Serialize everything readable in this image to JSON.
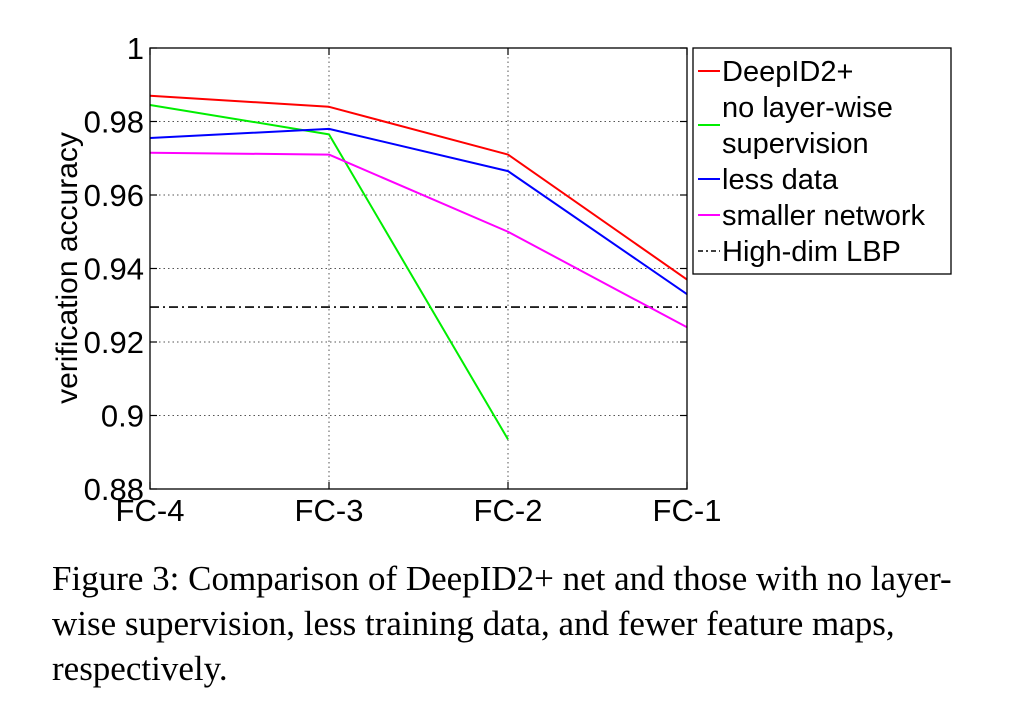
{
  "chart_data": {
    "type": "line",
    "title": "",
    "xlabel": "",
    "ylabel": "verification accuracy",
    "categories": [
      "FC-4",
      "FC-3",
      "FC-2",
      "FC-1"
    ],
    "ylim": [
      0.88,
      1.0
    ],
    "yticks": [
      0.88,
      0.9,
      0.92,
      0.94,
      0.96,
      0.98,
      1
    ],
    "ytick_labels": [
      "0.88",
      "0.9",
      "0.92",
      "0.94",
      "0.96",
      "0.98",
      "1"
    ],
    "grid": true,
    "legend_position": "top-right",
    "series": [
      {
        "name": "DeepID2+",
        "values": [
          0.987,
          0.984,
          0.971,
          0.937
        ],
        "color": "#ff0000",
        "style": "solid"
      },
      {
        "name": "no layer-wise supervision",
        "legend_lines": [
          "no layer-wise",
          "supervision"
        ],
        "values": [
          0.9845,
          0.9765,
          0.8935,
          null
        ],
        "color": "#00ee00",
        "style": "solid"
      },
      {
        "name": "less data",
        "values": [
          0.9755,
          0.978,
          0.9665,
          0.933
        ],
        "color": "#0000ff",
        "style": "solid"
      },
      {
        "name": "smaller network",
        "values": [
          0.9715,
          0.971,
          0.95,
          0.924
        ],
        "color": "#ff00ff",
        "style": "solid"
      },
      {
        "name": "High-dim LBP",
        "values": [
          0.9295,
          0.9295,
          0.9295,
          0.9295
        ],
        "color": "#000000",
        "style": "dashdot"
      }
    ]
  },
  "caption": "Figure 3: Comparison of DeepID2+ net and those with no layer-wise supervision, less training data, and fewer feature maps, respectively."
}
